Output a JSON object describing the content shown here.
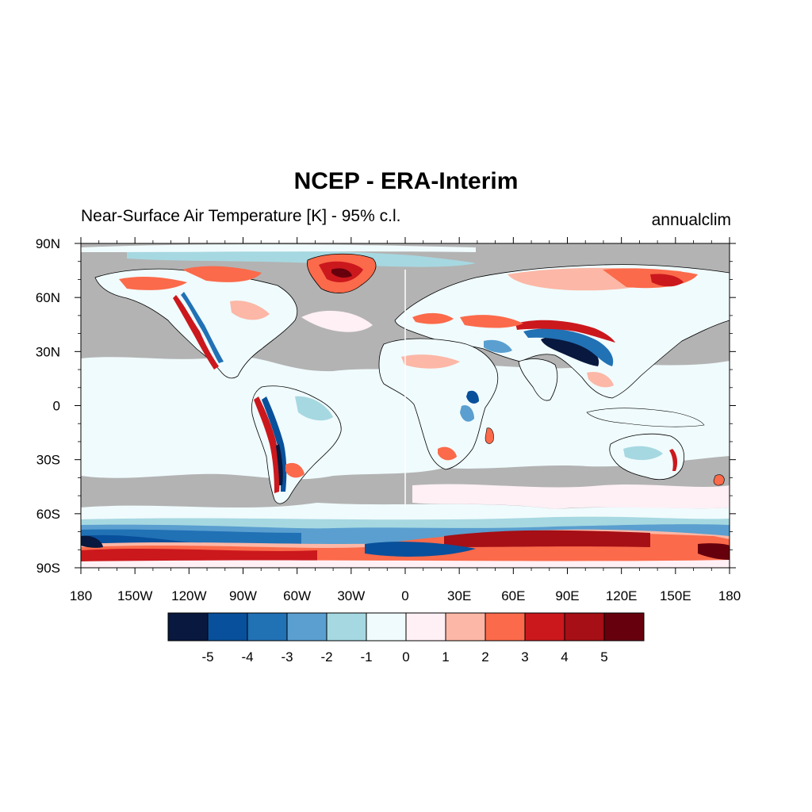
{
  "title": "NCEP - ERA-Interim",
  "subtitle_left": "Near-Surface Air Temperature [K] - 95% c.l.",
  "subtitle_right": "annualclim",
  "map": {
    "projection": "cylindrical-equidistant",
    "lon_range": [
      -180,
      180
    ],
    "lat_range": [
      -90,
      90
    ],
    "x_ticks": [
      {
        "value": -180,
        "label": "180"
      },
      {
        "value": -150,
        "label": "150W"
      },
      {
        "value": -120,
        "label": "120W"
      },
      {
        "value": -90,
        "label": "90W"
      },
      {
        "value": -60,
        "label": "60W"
      },
      {
        "value": -30,
        "label": "30W"
      },
      {
        "value": 0,
        "label": "0"
      },
      {
        "value": 30,
        "label": "30E"
      },
      {
        "value": 60,
        "label": "60E"
      },
      {
        "value": 90,
        "label": "90E"
      },
      {
        "value": 120,
        "label": "120E"
      },
      {
        "value": 150,
        "label": "150E"
      },
      {
        "value": 180,
        "label": "180"
      }
    ],
    "y_ticks": [
      {
        "value": 90,
        "label": "90N"
      },
      {
        "value": 60,
        "label": "60N"
      },
      {
        "value": 30,
        "label": "30N"
      },
      {
        "value": 0,
        "label": "0"
      },
      {
        "value": -30,
        "label": "30S"
      },
      {
        "value": -60,
        "label": "60S"
      },
      {
        "value": -90,
        "label": "90S"
      }
    ],
    "masked_color": "#b3b3b3",
    "coastline_color": "#000000"
  },
  "colorbar": {
    "levels": [
      "-5",
      "-4",
      "-3",
      "-2",
      "-1",
      "0",
      "1",
      "2",
      "3",
      "4",
      "5"
    ],
    "colors": [
      "#08183e",
      "#08509b",
      "#2171b5",
      "#5a9fcf",
      "#a6d8e1",
      "#f0fbfd",
      "#fff0f5",
      "#fcb7a6",
      "#fb6a4a",
      "#cb181d",
      "#a50f15",
      "#67000d"
    ]
  }
}
